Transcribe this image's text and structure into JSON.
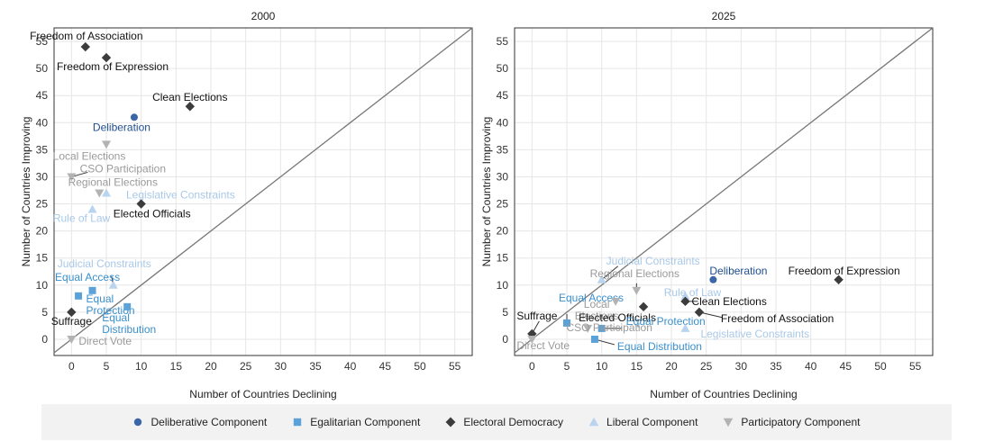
{
  "legend": [
    {
      "key": "Deliberative",
      "label": "Deliberative Component",
      "color": "#3b67a8",
      "shape": "circle",
      "label_color": "#1f4e8f"
    },
    {
      "key": "Egalitarian",
      "label": "Egalitarian Component",
      "color": "#5ba2d8",
      "shape": "square",
      "label_color": "#3a8fcc"
    },
    {
      "key": "Electoral",
      "label": "Electoral Democracy",
      "color": "#3c3c3c",
      "shape": "diamond",
      "label_color": "#111111"
    },
    {
      "key": "Liberal",
      "label": "Liberal Component",
      "color": "#b9d4ee",
      "shape": "triangle-up",
      "label_color": "#a8c8e8"
    },
    {
      "key": "Participatory",
      "label": "Participatory Component",
      "color": "#b3b3b3",
      "shape": "triangle-down",
      "label_color": "#9a9a9a"
    }
  ],
  "chart_data": [
    {
      "type": "scatter",
      "title": "2000",
      "xlabel": "Number of Countries Declining",
      "ylabel": "Number of Countries Improving",
      "xlim": [
        -2.5,
        57.5
      ],
      "ylim": [
        -3,
        57.5
      ],
      "xticks": [
        0,
        5,
        10,
        15,
        20,
        25,
        30,
        35,
        40,
        45,
        50,
        55
      ],
      "yticks": [
        0,
        5,
        10,
        15,
        20,
        25,
        30,
        35,
        40,
        45,
        50,
        55
      ],
      "grid": true,
      "diagonal": true,
      "points": [
        {
          "label": "Freedom of Association",
          "group": "Electoral",
          "x": 2,
          "y": 54
        },
        {
          "label": "Freedom of Expression",
          "group": "Electoral",
          "x": 5,
          "y": 52
        },
        {
          "label": "Clean Elections",
          "group": "Electoral",
          "x": 17,
          "y": 43
        },
        {
          "label": "Deliberation",
          "group": "Deliberative",
          "x": 9,
          "y": 41
        },
        {
          "label": "Local Elections",
          "group": "Participatory",
          "x": 5,
          "y": 36
        },
        {
          "label": "CSO Participation",
          "group": "Participatory",
          "x": 0,
          "y": 30
        },
        {
          "label": "Regional Elections",
          "group": "Participatory",
          "x": 4,
          "y": 27
        },
        {
          "label": "Legislative Constraints",
          "group": "Liberal",
          "x": 5,
          "y": 27
        },
        {
          "label": "Rule of Law",
          "group": "Liberal",
          "x": 3,
          "y": 24
        },
        {
          "label": "Elected Officials",
          "group": "Electoral",
          "x": 10,
          "y": 25
        },
        {
          "label": "Judicial Constraints",
          "group": "Liberal",
          "x": 6,
          "y": 10
        },
        {
          "label": "Equal Access",
          "group": "Egalitarian",
          "x": 1,
          "y": 8
        },
        {
          "label": "Equal Protection",
          "group": "Egalitarian",
          "x": 3,
          "y": 9
        },
        {
          "label": "Equal Distribution",
          "group": "Egalitarian",
          "x": 8,
          "y": 6
        },
        {
          "label": "Suffrage",
          "group": "Electoral",
          "x": 0,
          "y": 5
        },
        {
          "label": "Direct Vote",
          "group": "Participatory",
          "x": 0,
          "y": 0
        }
      ]
    },
    {
      "type": "scatter",
      "title": "2025",
      "xlabel": "Number of Countries Declining",
      "ylabel": "Number of Countries Improving",
      "xlim": [
        -2.5,
        57.5
      ],
      "ylim": [
        -3,
        57.5
      ],
      "xticks": [
        0,
        5,
        10,
        15,
        20,
        25,
        30,
        35,
        40,
        45,
        50,
        55
      ],
      "yticks": [
        0,
        5,
        10,
        15,
        20,
        25,
        30,
        35,
        40,
        45,
        50,
        55
      ],
      "grid": true,
      "diagonal": true,
      "points": [
        {
          "label": "Deliberation",
          "group": "Deliberative",
          "x": 26,
          "y": 11
        },
        {
          "label": "Freedom of Expression",
          "group": "Electoral",
          "x": 44,
          "y": 11
        },
        {
          "label": "Judicial Constraints",
          "group": "Liberal",
          "x": 10,
          "y": 11
        },
        {
          "label": "Regional Elections",
          "group": "Participatory",
          "x": 15,
          "y": 9
        },
        {
          "label": "Rule of Law",
          "group": "Liberal",
          "x": 22,
          "y": 8
        },
        {
          "label": "Equal Access",
          "group": "Egalitarian",
          "x": 5,
          "y": 3
        },
        {
          "label": "Local Elections",
          "group": "Participatory",
          "x": 12,
          "y": 7
        },
        {
          "label": "Clean Elections",
          "group": "Electoral",
          "x": 22,
          "y": 7
        },
        {
          "label": "Elected Officials",
          "group": "Electoral",
          "x": 16,
          "y": 6
        },
        {
          "label": "Freedom of Association",
          "group": "Electoral",
          "x": 24,
          "y": 5
        },
        {
          "label": "Suffrage",
          "group": "Electoral",
          "x": 0,
          "y": 1
        },
        {
          "label": "Equal Protection",
          "group": "Egalitarian",
          "x": 10,
          "y": 2
        },
        {
          "label": "Legislative Constraints",
          "group": "Liberal",
          "x": 22,
          "y": 2
        },
        {
          "label": "CSO Participation",
          "group": "Participatory",
          "x": 8,
          "y": 2
        },
        {
          "label": "Direct Vote",
          "group": "Participatory",
          "x": 0,
          "y": 0
        },
        {
          "label": "Equal Distribution",
          "group": "Egalitarian",
          "x": 9,
          "y": 0
        }
      ]
    }
  ]
}
